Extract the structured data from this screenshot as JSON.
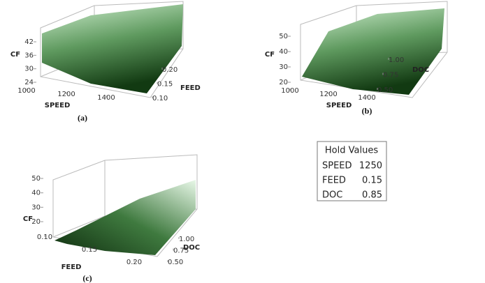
{
  "chart_data": [
    {
      "type": "surface",
      "caption": "(a)",
      "xlabel": "SPEED",
      "ylabel": "FEED",
      "zlabel": "CF",
      "xlim": [
        1000,
        1400
      ],
      "xticks": [
        1000,
        1200,
        1400
      ],
      "ylim": [
        0.1,
        0.2
      ],
      "yticks": [
        {
          "value": 0.1,
          "label": "0.10"
        },
        {
          "value": 0.15,
          "label": "0.15"
        },
        {
          "value": 0.2,
          "label": "0.20"
        }
      ],
      "zlim": [
        24,
        42
      ],
      "zticks": [
        24,
        30,
        36,
        42
      ]
    },
    {
      "type": "surface",
      "caption": "(b)",
      "xlabel": "SPEED",
      "ylabel": "DOC",
      "zlabel": "CF",
      "xlim": [
        1000,
        1400
      ],
      "xticks": [
        1000,
        1200,
        1400
      ],
      "ylim": [
        0.5,
        1
      ],
      "yticks": [
        {
          "value": 0.5,
          "label": "0.50"
        },
        0.75,
        {
          "value": 1,
          "label": "1.00"
        }
      ],
      "zlim": [
        20,
        50
      ],
      "zticks": [
        20,
        30,
        40,
        50
      ]
    },
    {
      "type": "surface",
      "caption": "(c)",
      "xlabel": "FEED",
      "ylabel": "DOC",
      "zlabel": "CF",
      "xlim": [
        0.1,
        0.2
      ],
      "xticks": [
        {
          "value": 0.1,
          "label": "0.10"
        },
        0.15,
        {
          "value": 0.2,
          "label": "0.20"
        }
      ],
      "ylim": [
        0.5,
        1
      ],
      "yticks": [
        {
          "value": 0.5,
          "label": "0.50"
        },
        0.75,
        {
          "value": 1,
          "label": "1.00"
        }
      ],
      "zlim": [
        20,
        50
      ],
      "zticks": [
        20,
        30,
        40,
        50
      ]
    }
  ],
  "hold_values": {
    "title": "Hold Values",
    "rows": [
      [
        "SPEED",
        1250
      ],
      [
        "FEED",
        0.15
      ],
      [
        "DOC",
        0.85
      ]
    ]
  }
}
